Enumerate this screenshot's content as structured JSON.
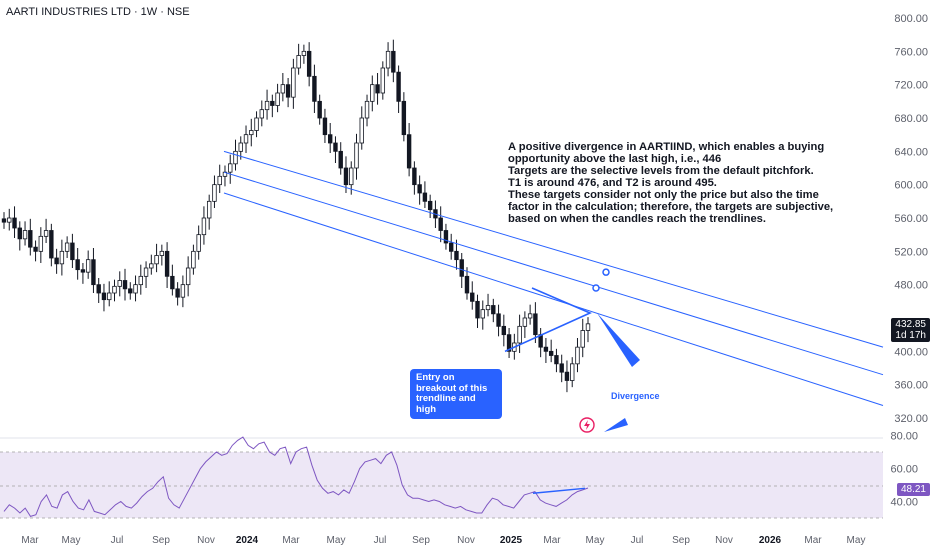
{
  "header": {
    "title": "AARTI INDUSTRIES LTD · 1W · NSE"
  },
  "colors": {
    "background": "#ffffff",
    "candle": "#131722",
    "trendline": "#2962ff",
    "rsi_line": "#7e57c2",
    "rsi_band": "#ede7f6",
    "axis_text": "#5d606b",
    "last_price_badge": "#131722",
    "rsi_badge": "#7e57c2",
    "callout_bg": "#2962ff"
  },
  "annotation": {
    "lines": [
      "A positive divergence in AARTIIND, which enables a buying",
      "opportunity above the last high, i.e., 446",
      "Targets are the selective levels from the default pitchfork.",
      "T1 is around 476, and T2 is around 495.",
      "These targets consider not only the price but also the time",
      "factor in the calculation; therefore, the targets are subjective,",
      "based on when the candles reach the trendlines."
    ],
    "callout": "Entry on breakout of this trendline and high",
    "divergence_label": "Divergence",
    "lightning_icon": "lightning-icon"
  },
  "price_axis": {
    "last_price": "432.85",
    "countdown": "1d 17h",
    "rsi_value": "48.21"
  },
  "chart_data": [
    {
      "type": "candlestick",
      "title": "AARTI INDUSTRIES LTD · 1W · NSE",
      "ylim": [
        300,
        800
      ],
      "yticks": [
        320,
        360,
        400,
        440,
        480,
        520,
        560,
        600,
        640,
        680,
        720,
        760,
        800
      ],
      "ytick_labels": [
        "320.00",
        "360.00",
        "400.00",
        "440.00",
        "480.00",
        "520.00",
        "560.00",
        "600.00",
        "640.00",
        "680.00",
        "720.00",
        "760.00",
        "800.00"
      ],
      "x_labels": [
        "Mar",
        "May",
        "Jul",
        "Sep",
        "Nov",
        "2024",
        "Mar",
        "May",
        "Jul",
        "Sep",
        "Nov",
        "2025",
        "Mar",
        "May",
        "Jul",
        "Sep",
        "Nov",
        "2026",
        "Mar",
        "May"
      ],
      "close_path": [
        555,
        560,
        548,
        535,
        545,
        525,
        520,
        538,
        545,
        512,
        505,
        520,
        530,
        510,
        498,
        495,
        510,
        480,
        470,
        462,
        470,
        478,
        485,
        475,
        470,
        480,
        490,
        500,
        505,
        515,
        520,
        490,
        475,
        465,
        480,
        500,
        520,
        540,
        560,
        580,
        600,
        610,
        615,
        625,
        640,
        650,
        660,
        665,
        680,
        690,
        700,
        695,
        710,
        720,
        705,
        740,
        755,
        760,
        730,
        700,
        680,
        660,
        650,
        640,
        620,
        600,
        620,
        650,
        680,
        700,
        720,
        710,
        740,
        760,
        735,
        700,
        660,
        620,
        600,
        590,
        580,
        570,
        560,
        545,
        530,
        520,
        510,
        490,
        470,
        460,
        440,
        450,
        455,
        445,
        430,
        420,
        400,
        410,
        430,
        440,
        445,
        420,
        405,
        400,
        395,
        385,
        375,
        365,
        385,
        405,
        425,
        433
      ],
      "pitchfork_lines": [
        {
          "name": "upper",
          "points": [
            [
              "Oct 2023",
              640
            ],
            [
              "Jun 2026",
              405
            ]
          ]
        },
        {
          "name": "median",
          "points": [
            [
              "Oct 2023",
              615
            ],
            [
              "Jun 2026",
              372
            ]
          ]
        },
        {
          "name": "lower",
          "points": [
            [
              "Oct 2023",
              590
            ],
            [
              "Jun 2026",
              335
            ]
          ]
        }
      ],
      "targets": {
        "T1": 476,
        "T2": 495,
        "trigger": 446
      }
    },
    {
      "type": "line",
      "title": "RSI",
      "ylim": [
        30,
        90
      ],
      "yticks": [
        40,
        60,
        80
      ],
      "ytick_labels": [
        "40.00",
        "60.00",
        "80.00"
      ],
      "band": [
        30,
        70
      ],
      "values": [
        34,
        38,
        36,
        33,
        36,
        31,
        32,
        40,
        44,
        37,
        36,
        44,
        46,
        40,
        36,
        35,
        41,
        34,
        33,
        32,
        35,
        38,
        40,
        37,
        36,
        39,
        43,
        46,
        48,
        52,
        55,
        42,
        38,
        36,
        42,
        48,
        54,
        60,
        64,
        67,
        70,
        68,
        69,
        74,
        77,
        79,
        74,
        72,
        75,
        76,
        70,
        68,
        72,
        73,
        63,
        70,
        72,
        73,
        62,
        53,
        48,
        45,
        46,
        44,
        47,
        45,
        52,
        60,
        64,
        65,
        66,
        63,
        68,
        70,
        62,
        50,
        44,
        42,
        42,
        41,
        40,
        41,
        40,
        38,
        37,
        36,
        37,
        35,
        34,
        33,
        33,
        38,
        42,
        41,
        38,
        37,
        36,
        40,
        44,
        45,
        46,
        41,
        39,
        38,
        37,
        39,
        41,
        44,
        46,
        47,
        48.21
      ]
    }
  ]
}
